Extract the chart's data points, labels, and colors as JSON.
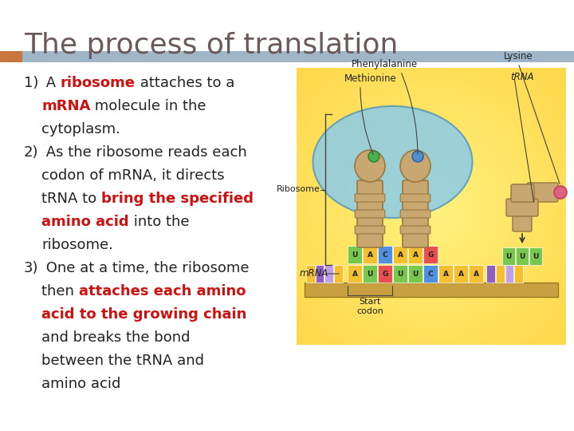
{
  "title": "The process of translation",
  "title_color": "#6b5a5a",
  "title_fontsize": 26,
  "title_fontstyle": "normal",
  "title_fontweight": "normal",
  "background_color": "#ffffff",
  "header_bar_color": "#9fb5c8",
  "header_bar_left_color": "#c97540",
  "body_fontsize": 13,
  "body_color": "#222222",
  "red_color": "#cc1111",
  "diag_bg": "#f5e87a",
  "diag_bg2": "#f0d84a",
  "ribosome_color": "#8ecde6",
  "ribosome_edge": "#5a9ab5",
  "trna_color": "#c8a870",
  "trna_edge": "#9a7840",
  "base_A": "#f5c030",
  "base_U": "#78c850",
  "base_G": "#e85050",
  "base_C": "#5090e0",
  "base_purple": "#9060c0",
  "mrna_seq": [
    "A",
    "U",
    "G",
    "U",
    "U",
    "C",
    "A",
    "A",
    "A"
  ],
  "codon_seq": [
    "U",
    "A",
    "C",
    "A",
    "A",
    "G"
  ],
  "uuu_seq": [
    "U",
    "U",
    "U"
  ],
  "labels": {
    "methionine": "Methionine",
    "phenylalanine": "Phenylalanine",
    "lysine": "Lysine",
    "trna": "tRNA",
    "ribosome": "Ribosome",
    "mrna": "mRNA",
    "start_codon": "Start\ncodon"
  }
}
